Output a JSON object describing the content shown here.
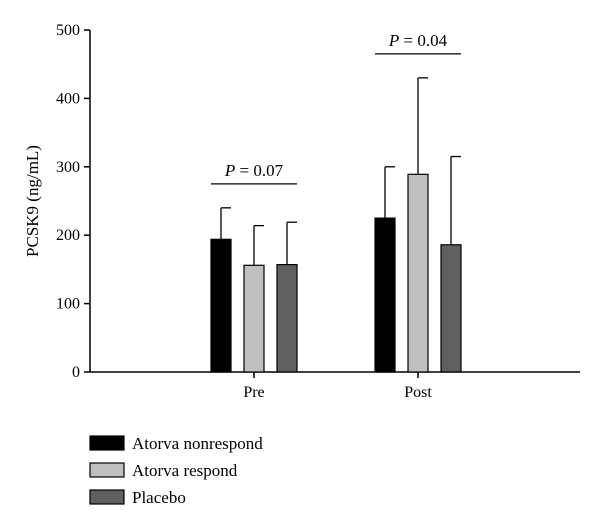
{
  "chart_data": {
    "type": "bar",
    "ylabel": "PCSK9 (ng/mL)",
    "ylim": [
      0,
      500
    ],
    "yticks": [
      0,
      100,
      200,
      300,
      400,
      500
    ],
    "categories": [
      "Pre",
      "Post"
    ],
    "series": [
      {
        "name": "Atorva nonrespond",
        "values": [
          194,
          225
        ],
        "errors": [
          46,
          75
        ],
        "color": "#000000"
      },
      {
        "name": "Atorva respond",
        "values": [
          156,
          289
        ],
        "errors": [
          58,
          141
        ],
        "color": "#c0c0c0"
      },
      {
        "name": "Placebo",
        "values": [
          157,
          186
        ],
        "errors": [
          62,
          129
        ],
        "color": "#606060"
      }
    ],
    "annotations": [
      {
        "category": "Pre",
        "p_label": "P",
        "text": " = 0.07"
      },
      {
        "category": "Post",
        "p_label": "P",
        "text": " = 0.04"
      }
    ],
    "legend": "bottom-left"
  }
}
